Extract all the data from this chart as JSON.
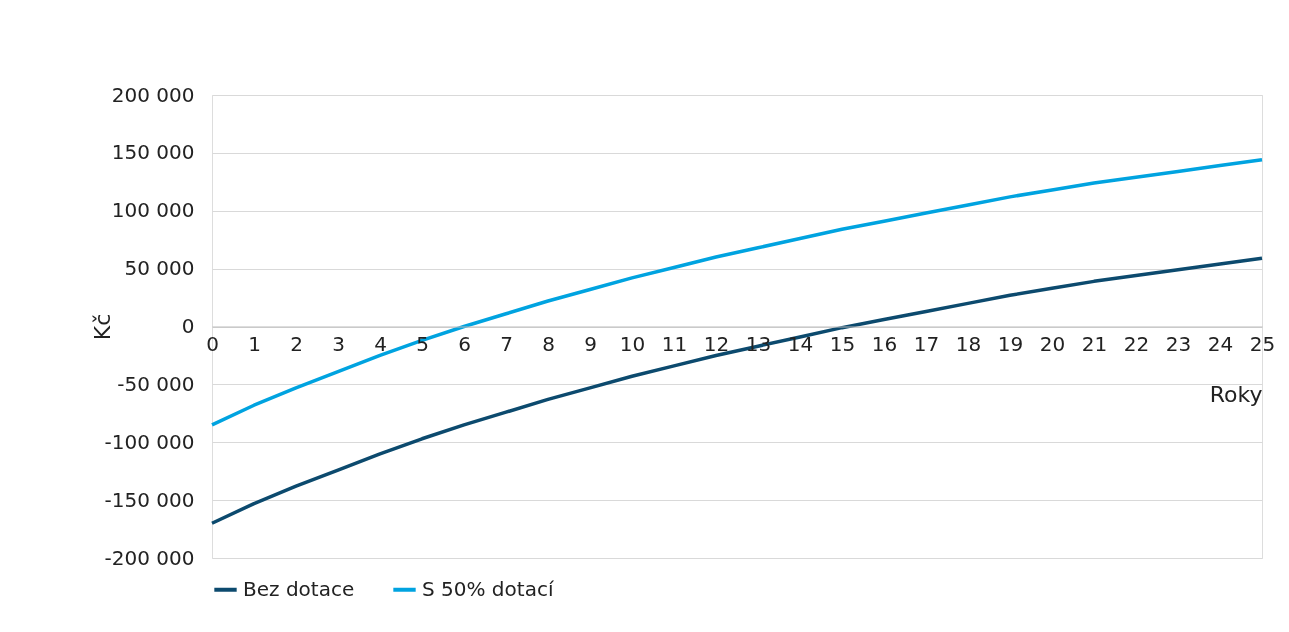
{
  "chart_data": {
    "type": "line",
    "xlabel": "Roky",
    "ylabel": "Kč",
    "x": [
      0,
      1,
      2,
      3,
      4,
      5,
      6,
      7,
      8,
      9,
      10,
      11,
      12,
      13,
      14,
      15,
      16,
      17,
      18,
      19,
      20,
      21,
      22,
      23,
      24,
      25
    ],
    "series": [
      {
        "name": "Bez dotace",
        "color": "#0c4a6e",
        "values": [
          -170000,
          -153000,
          -138000,
          -124000,
          -110000,
          -97000,
          -85000,
          -74000,
          -63000,
          -53000,
          -43000,
          -34000,
          -25000,
          -17000,
          -9000,
          -1000,
          6000,
          13000,
          20000,
          27000,
          33000,
          39000,
          44000,
          49000,
          54000,
          59000
        ]
      },
      {
        "name": "S 50% dotací",
        "color": "#00a3e0",
        "values": [
          -85000,
          -68000,
          -53000,
          -39000,
          -25000,
          -12000,
          0,
          11000,
          22000,
          32000,
          42000,
          51000,
          60000,
          68000,
          76000,
          84000,
          91000,
          98000,
          105000,
          112000,
          118000,
          124000,
          129000,
          134000,
          139000,
          144000
        ]
      }
    ],
    "xlim": [
      0,
      25
    ],
    "xticks": [
      0,
      1,
      2,
      3,
      4,
      5,
      6,
      7,
      8,
      9,
      10,
      11,
      12,
      13,
      14,
      15,
      16,
      17,
      18,
      19,
      20,
      21,
      22,
      23,
      24,
      25
    ],
    "ylim": [
      -200000,
      200000
    ],
    "yticks": [
      {
        "value": -200000,
        "label": "-200 000"
      },
      {
        "value": -150000,
        "label": "-150 000"
      },
      {
        "value": -100000,
        "label": "-100 000"
      },
      {
        "value": -50000,
        "label": "-50 000"
      },
      0,
      {
        "value": 50000,
        "label": "50 000"
      },
      {
        "value": 100000,
        "label": "100 000"
      },
      {
        "value": 150000,
        "label": "150 000"
      },
      {
        "value": 200000,
        "label": "200 000"
      }
    ],
    "grid": "y",
    "legend": "bottom",
    "marker": "none",
    "line_style": "solid"
  }
}
